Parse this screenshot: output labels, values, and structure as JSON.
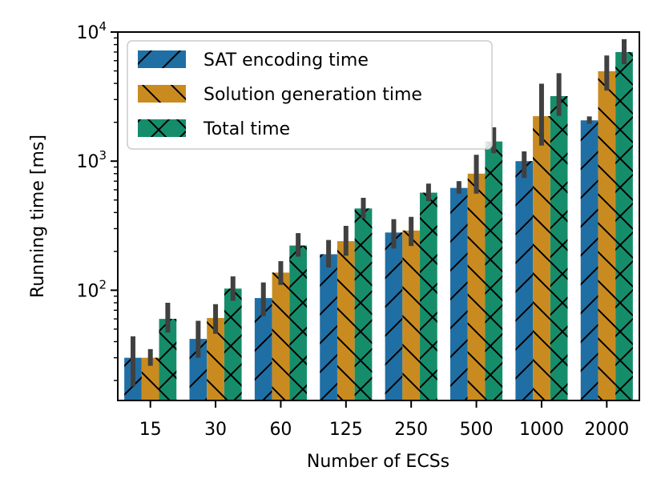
{
  "chart_data": {
    "type": "bar",
    "title": "",
    "xlabel": "Number of ECSs",
    "ylabel": "Running time [ms]",
    "yscale": "log",
    "ylim": [
      14,
      10000
    ],
    "y_ticks": [
      100,
      1000,
      10000
    ],
    "y_tick_labels": [
      {
        "base": "10",
        "exp": "2"
      },
      {
        "base": "10",
        "exp": "3"
      },
      {
        "base": "10",
        "exp": "4"
      }
    ],
    "categories": [
      "15",
      "30",
      "60",
      "125",
      "250",
      "500",
      "1000",
      "2000"
    ],
    "series": [
      {
        "name": "SAT encoding time",
        "color": "#1F6FA5",
        "hatch": "/",
        "values": [
          30,
          42,
          87,
          190,
          280,
          620,
          1000,
          2070
        ],
        "error_low": [
          18,
          30,
          63,
          150,
          210,
          560,
          740,
          1950
        ],
        "error_high": [
          44,
          58,
          115,
          245,
          355,
          700,
          1190,
          2220
        ]
      },
      {
        "name": "Solution generation time",
        "color": "#C98B20",
        "hatch": "\\",
        "values": [
          30,
          61,
          137,
          240,
          290,
          800,
          2230,
          4970
        ],
        "error_low": [
          26,
          46,
          110,
          185,
          220,
          560,
          1320,
          3520
        ],
        "error_high": [
          35,
          78,
          168,
          315,
          370,
          1120,
          3980,
          6580
        ]
      },
      {
        "name": "Total time",
        "color": "#168D6A",
        "hatch": "x",
        "values": [
          60,
          103,
          222,
          430,
          570,
          1420,
          3190,
          7000
        ],
        "error_low": [
          47,
          83,
          182,
          360,
          490,
          1150,
          2240,
          5640
        ],
        "error_high": [
          80,
          128,
          277,
          520,
          670,
          1830,
          4800,
          8800
        ]
      }
    ],
    "legend_position": "top-left",
    "grid": false
  }
}
